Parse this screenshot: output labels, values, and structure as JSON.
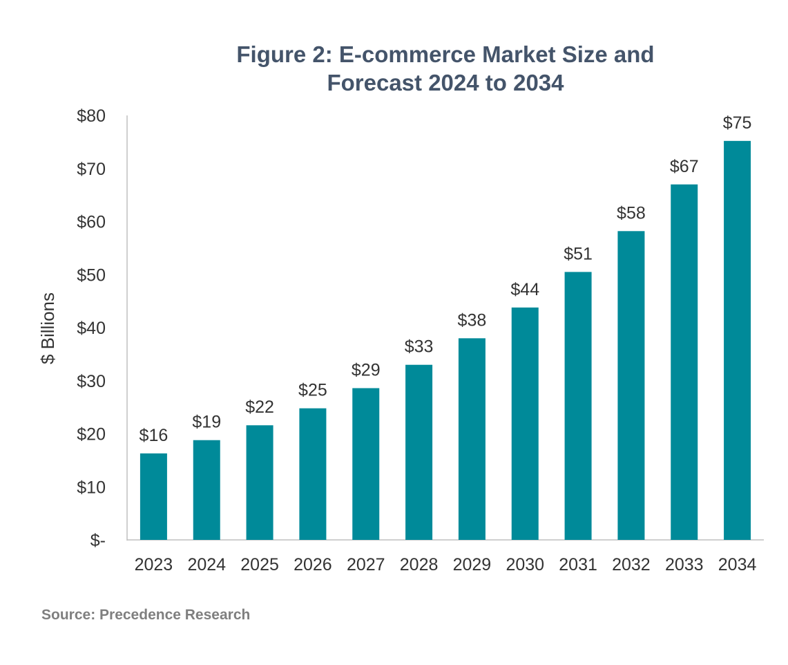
{
  "chart_data": {
    "type": "bar",
    "title_lines": [
      "Figure 2: E-commerce Market Size and",
      "Forecast 2024 to 2034"
    ],
    "xlabel": "",
    "ylabel": "$ Billions",
    "categories": [
      "2023",
      "2024",
      "2025",
      "2026",
      "2027",
      "2028",
      "2029",
      "2030",
      "2031",
      "2032",
      "2033",
      "2034"
    ],
    "values": [
      16.3,
      18.8,
      21.6,
      24.8,
      28.6,
      33.0,
      38.0,
      43.8,
      50.5,
      58.2,
      67.0,
      75.2
    ],
    "data_labels": [
      "$16",
      "$19",
      "$22",
      "$25",
      "$29",
      "$33",
      "$38",
      "$44",
      "$51",
      "$58",
      "$67",
      "$75"
    ],
    "ylim": [
      0,
      80
    ],
    "yticks": [
      0,
      10,
      20,
      30,
      40,
      50,
      60,
      70,
      80
    ],
    "ytick_labels": [
      "$-",
      "$10",
      "$20",
      "$30",
      "$40",
      "$50",
      "$60",
      "$70",
      "$80"
    ],
    "grid": false,
    "legend": "none",
    "bar_color": "#008a99"
  },
  "source": "Source: Precedence Research"
}
